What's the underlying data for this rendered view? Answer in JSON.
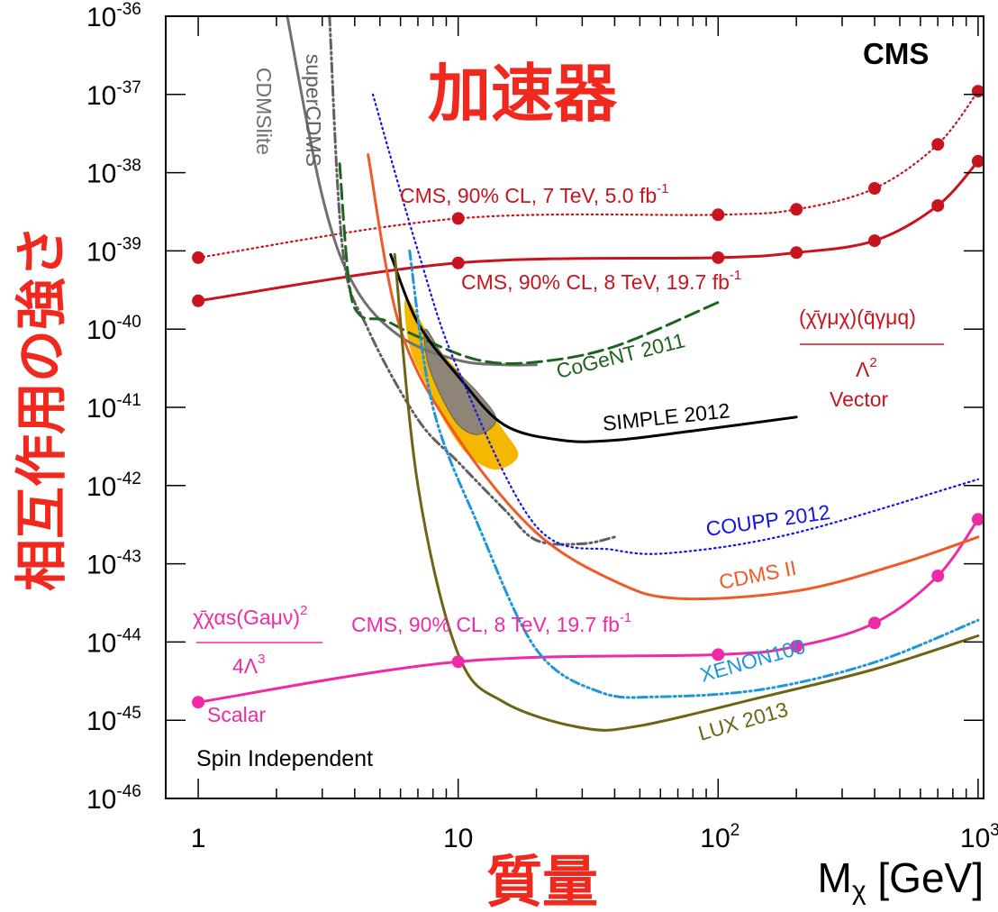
{
  "chart_data": {
    "type": "line",
    "title_main": "加速器",
    "experiment_label": "CMS",
    "ylabel": "相互作用の強さ",
    "xlabel_jp": "質量",
    "xlabel": "M",
    "xlabel_sub": "χ",
    "xlabel_unit": " [GeV]",
    "xscale": "log",
    "yscale": "log",
    "xlim": [
      0.75,
      1050
    ],
    "ylim": [
      1e-46,
      1e-36
    ],
    "x_ticks": [
      {
        "value": 1,
        "base": "1",
        "exp": ""
      },
      {
        "value": 10,
        "base": "10",
        "exp": ""
      },
      {
        "value": 100,
        "base": "10",
        "exp": "2"
      },
      {
        "value": 1000,
        "base": "10",
        "exp": "3"
      }
    ],
    "y_ticks": [
      {
        "value": -36,
        "base": "10",
        "exp": "-36"
      },
      {
        "value": -37,
        "base": "10",
        "exp": "-37"
      },
      {
        "value": -38,
        "base": "10",
        "exp": "-38"
      },
      {
        "value": -39,
        "base": "10",
        "exp": "-39"
      },
      {
        "value": -40,
        "base": "10",
        "exp": "-40"
      },
      {
        "value": -41,
        "base": "10",
        "exp": "-41"
      },
      {
        "value": -42,
        "base": "10",
        "exp": "-42"
      },
      {
        "value": -43,
        "base": "10",
        "exp": "-43"
      },
      {
        "value": -44,
        "base": "10",
        "exp": "-44"
      },
      {
        "value": -45,
        "base": "10",
        "exp": "-45"
      },
      {
        "value": -46,
        "base": "10",
        "exp": "-46"
      }
    ],
    "annotations": {
      "spin": "Spin Independent",
      "vector_operator": "(χ̄γμχ)(q̄γμq)",
      "vector_denominator": "Λ",
      "vector_denominator_exp": "2",
      "vector_name": "Vector",
      "scalar_operator": "χ̄χαs(Gaμν)",
      "scalar_operator_exp": "2",
      "scalar_denominator": "4Λ",
      "scalar_denominator_exp": "3",
      "scalar_name": "Scalar"
    },
    "series": [
      {
        "name": "CMS, 90% CL, 7 TeV, 5.0 fb",
        "name_sup": "-1",
        "color": "#c8141e",
        "style": "dotted",
        "markers": true,
        "points": [
          [
            1,
            8.2e-40
          ],
          [
            10,
            2.6e-39
          ],
          [
            100,
            2.9e-39
          ],
          [
            200,
            3.4e-39
          ],
          [
            400,
            6.3e-39
          ],
          [
            700,
            2.3e-38
          ],
          [
            1000,
            1.1e-37
          ]
        ]
      },
      {
        "name": "CMS, 90% CL, 8 TeV, 19.7 fb",
        "name_sup": "-1",
        "color": "#c8141e",
        "style": "solid",
        "markers": true,
        "points": [
          [
            1,
            2.3e-40
          ],
          [
            10,
            7e-40
          ],
          [
            100,
            8.2e-40
          ],
          [
            200,
            9.5e-40
          ],
          [
            400,
            1.35e-39
          ],
          [
            700,
            3.8e-39
          ],
          [
            1000,
            1.4e-38
          ]
        ]
      },
      {
        "name": "CMS, 90% CL, 8 TeV, 19.7 fb",
        "name_sup": "-1",
        "color": "#f02aa6",
        "style": "solid",
        "markers": true,
        "points": [
          [
            1,
            1.7e-45
          ],
          [
            10,
            5.6e-45
          ],
          [
            100,
            6.9e-45
          ],
          [
            200,
            8.8e-45
          ],
          [
            400,
            1.75e-44
          ],
          [
            700,
            7e-44
          ],
          [
            1000,
            3.7e-43
          ]
        ]
      },
      {
        "name": "CDMSlite",
        "color": "#707070",
        "style": "solid",
        "markers": false,
        "points": [
          [
            2.2,
            1e-36
          ],
          [
            3,
            5e-39
          ],
          [
            4,
            3.5e-40
          ],
          [
            6,
            8e-41
          ],
          [
            10,
            4e-41
          ],
          [
            15,
            3.5e-41
          ],
          [
            20,
            3.5e-41
          ]
        ]
      },
      {
        "name": "superCDMS",
        "color": "#606060",
        "style": "dashdot",
        "markers": false,
        "points": [
          [
            3.2,
            1e-36
          ],
          [
            3.6,
            1e-39
          ],
          [
            4.5,
            1e-40
          ],
          [
            7,
            7e-42
          ],
          [
            10,
            2e-42
          ],
          [
            15,
            5e-43
          ],
          [
            20,
            2e-43
          ],
          [
            30,
            1.8e-43
          ],
          [
            40,
            2.2e-43
          ]
        ]
      },
      {
        "name": "CoGeNT 2011",
        "color": "#1e641e",
        "style": "dashed",
        "markers": false,
        "points": [
          [
            3.5,
            1.3e-38
          ],
          [
            3.8,
            4e-40
          ],
          [
            4.2,
            1.5e-40
          ],
          [
            5.2,
            1.3e-40
          ],
          [
            7,
            8e-41
          ],
          [
            12,
            4e-41
          ],
          [
            20,
            3.8e-41
          ],
          [
            40,
            6e-41
          ],
          [
            100,
            2.2e-40
          ]
        ]
      },
      {
        "name": "SIMPLE 2012",
        "color": "#000000",
        "style": "solid",
        "markers": false,
        "points": [
          [
            5.5,
            9e-40
          ],
          [
            7,
            1.2e-40
          ],
          [
            10,
            2.5e-41
          ],
          [
            15,
            6e-42
          ],
          [
            25,
            3.8e-42
          ],
          [
            40,
            3.8e-42
          ],
          [
            80,
            5e-42
          ],
          [
            200,
            7.5e-42
          ]
        ]
      },
      {
        "name": "COUPP 2012",
        "color": "#1414e6",
        "style": "dotted",
        "markers": false,
        "points": [
          [
            4.7,
            1e-37
          ],
          [
            7,
            1e-39
          ],
          [
            10,
            3e-41
          ],
          [
            20,
            3e-43
          ],
          [
            40,
            1.5e-43
          ],
          [
            70,
            1.4e-43
          ],
          [
            200,
            2.5e-43
          ],
          [
            1000,
            1.2e-42
          ]
        ]
      },
      {
        "name": "CDMS II",
        "color": "#f05a28",
        "style": "solid",
        "markers": false,
        "points": [
          [
            4.5,
            1.7e-38
          ],
          [
            6,
            1e-40
          ],
          [
            10,
            4e-42
          ],
          [
            20,
            2.5e-43
          ],
          [
            40,
            6e-44
          ],
          [
            70,
            3.6e-44
          ],
          [
            200,
            4.5e-44
          ],
          [
            500,
            1e-43
          ],
          [
            1000,
            2.2e-43
          ]
        ]
      },
      {
        "name": "XENON100",
        "color": "#1e96dc",
        "style": "dashdot",
        "markers": false,
        "points": [
          [
            6.5,
            1e-39
          ],
          [
            8,
            1e-41
          ],
          [
            12,
            3e-43
          ],
          [
            20,
            8e-45
          ],
          [
            35,
            2.3e-45
          ],
          [
            60,
            2e-45
          ],
          [
            150,
            2.5e-45
          ],
          [
            400,
            5.5e-45
          ],
          [
            1000,
            1.9e-44
          ]
        ]
      },
      {
        "name": "LUX 2013",
        "color": "#6e6414",
        "style": "solid",
        "markers": false,
        "points": [
          [
            5.7,
            9e-40
          ],
          [
            7,
            1e-42
          ],
          [
            10,
            7e-45
          ],
          [
            15,
            1.7e-45
          ],
          [
            30,
            8e-46
          ],
          [
            50,
            8.5e-46
          ],
          [
            150,
            2e-45
          ],
          [
            400,
            4.5e-45
          ],
          [
            1000,
            1.2e-44
          ]
        ]
      }
    ],
    "regions": [
      {
        "name": "yellow-contour",
        "color": "#f5b800",
        "points": [
          [
            6.3,
            2.5e-40
          ],
          [
            8,
            7e-41
          ],
          [
            11,
            2e-41
          ],
          [
            15,
            5e-42
          ],
          [
            17,
            2.4e-42
          ],
          [
            14,
            1.6e-42
          ],
          [
            11,
            2.4e-42
          ],
          [
            9,
            6e-42
          ],
          [
            7.5,
            2e-41
          ],
          [
            6.5,
            6e-41
          ]
        ]
      },
      {
        "name": "grey-contour",
        "color": "#8e8478",
        "points": [
          [
            7.5,
            1e-40
          ],
          [
            9,
            4e-41
          ],
          [
            12,
            1.5e-41
          ],
          [
            14,
            7e-42
          ],
          [
            12,
            4.5e-42
          ],
          [
            10,
            6e-42
          ],
          [
            8.5,
            1.5e-41
          ],
          [
            7.6,
            4e-41
          ]
        ]
      }
    ]
  }
}
